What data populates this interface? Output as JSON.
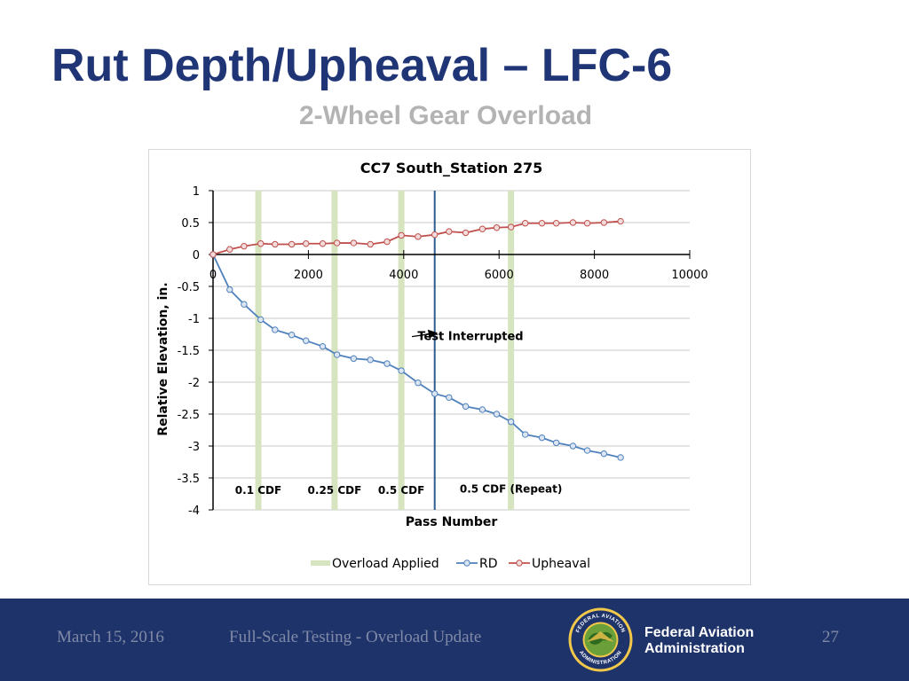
{
  "slide": {
    "title": "Rut Depth/Upheaval – LFC-6",
    "subtitle": "2-Wheel Gear Overload"
  },
  "footer": {
    "date": "March 15, 2016",
    "topic": "Full-Scale Testing - Overload Update",
    "org_line1": "Federal Aviation",
    "org_line2": "Administration",
    "page": "27",
    "seal_text_top": "FEDERAL AVIATION",
    "seal_text_bottom": "ADMINISTRATION",
    "seal_icon": "faa-seal-icon"
  },
  "chart_data": {
    "type": "line",
    "title": "CC7 South_Station 275",
    "xlabel": "Pass Number",
    "ylabel": "Relative Elevation, in.",
    "xlim": [
      0,
      10000
    ],
    "ylim": [
      -4,
      1
    ],
    "xticks": [
      0,
      2000,
      4000,
      6000,
      8000,
      10000
    ],
    "yticks": [
      1,
      0.5,
      0,
      -0.5,
      -1,
      -1.5,
      -2,
      -2.5,
      -3,
      -3.5,
      -4
    ],
    "grid": true,
    "legend_position": "bottom",
    "overload_applied": {
      "name": "Overload Applied",
      "color": "#d6e4bf",
      "x": [
        950,
        2550,
        3950,
        6250
      ]
    },
    "overload_labels": [
      {
        "text": "0.1 CDF",
        "x": 950,
        "y": -3.75
      },
      {
        "text": "0.25 CDF",
        "x": 2550,
        "y": -3.75
      },
      {
        "text": "0.5 CDF",
        "x": 3950,
        "y": -3.75
      },
      {
        "text": "0.5 CDF (Repeat)",
        "x": 6250,
        "y": -3.73
      }
    ],
    "interruption": {
      "x": 4650,
      "color": "#2e5b8e",
      "label": "Test Interrupted",
      "label_x": 5400,
      "label_y": -1.3,
      "arrow_to_y": -1.23
    },
    "series": [
      {
        "name": "RD",
        "color": "#4f81bd",
        "marker_fill": "#dce6f2",
        "x": [
          0,
          350,
          650,
          1000,
          1300,
          1650,
          1950,
          2300,
          2600,
          2950,
          3300,
          3650,
          3950,
          4300,
          4650,
          4950,
          5300,
          5650,
          5950,
          6250,
          6550,
          6900,
          7200,
          7550,
          7850,
          8200,
          8550
        ],
        "y": [
          0,
          -0.55,
          -0.78,
          -1.02,
          -1.18,
          -1.26,
          -1.35,
          -1.44,
          -1.57,
          -1.63,
          -1.65,
          -1.71,
          -1.82,
          -2.01,
          -2.18,
          -2.24,
          -2.38,
          -2.43,
          -2.5,
          -2.62,
          -2.82,
          -2.87,
          -2.95,
          -3.0,
          -3.07,
          -3.12,
          -3.18
        ]
      },
      {
        "name": "Upheaval",
        "color": "#c0504d",
        "marker_fill": "#f2dcdb",
        "x": [
          0,
          350,
          650,
          1000,
          1300,
          1650,
          1950,
          2300,
          2600,
          2950,
          3300,
          3650,
          3950,
          4300,
          4650,
          4950,
          5300,
          5650,
          5950,
          6250,
          6550,
          6900,
          7200,
          7550,
          7850,
          8200,
          8550
        ],
        "y": [
          0,
          0.08,
          0.13,
          0.17,
          0.16,
          0.16,
          0.17,
          0.17,
          0.18,
          0.18,
          0.16,
          0.2,
          0.3,
          0.28,
          0.31,
          0.36,
          0.34,
          0.4,
          0.42,
          0.43,
          0.49,
          0.49,
          0.49,
          0.5,
          0.49,
          0.5,
          0.52
        ]
      }
    ]
  }
}
